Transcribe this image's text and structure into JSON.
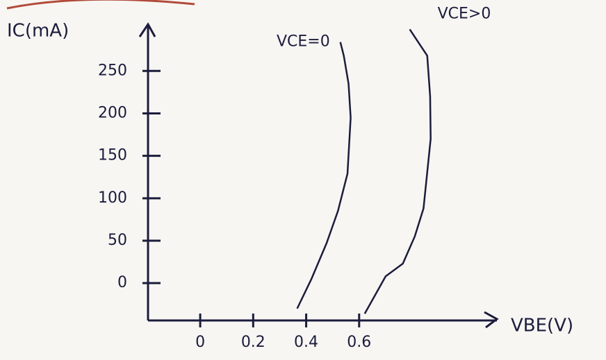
{
  "chart_data": {
    "type": "line",
    "y_label": "IC(mA)",
    "x_label": "VBE(V)",
    "xlim": [
      -0.197,
      1.12
    ],
    "ylim": [
      -44,
      305
    ],
    "xticks": [
      0,
      0.2,
      0.4,
      0.6
    ],
    "yticks": [
      0,
      50,
      100,
      150,
      200,
      250
    ],
    "series": [
      {
        "name": "VCE=0",
        "color": "#1c1c3c",
        "x": [
          0.366,
          0.42,
          0.477,
          0.52,
          0.556,
          0.568,
          0.56,
          0.542,
          0.529
        ],
        "values": [
          -30,
          5,
          47,
          85,
          129,
          195,
          235,
          268,
          284
        ]
      },
      {
        "name": "VCE>0",
        "color": "#1c1c3c",
        "x": [
          0.621,
          0.7,
          0.765,
          0.81,
          0.843,
          0.87,
          0.868,
          0.857,
          0.791
        ],
        "values": [
          -36,
          8,
          23,
          55,
          88,
          170,
          220,
          268,
          299
        ]
      }
    ]
  }
}
